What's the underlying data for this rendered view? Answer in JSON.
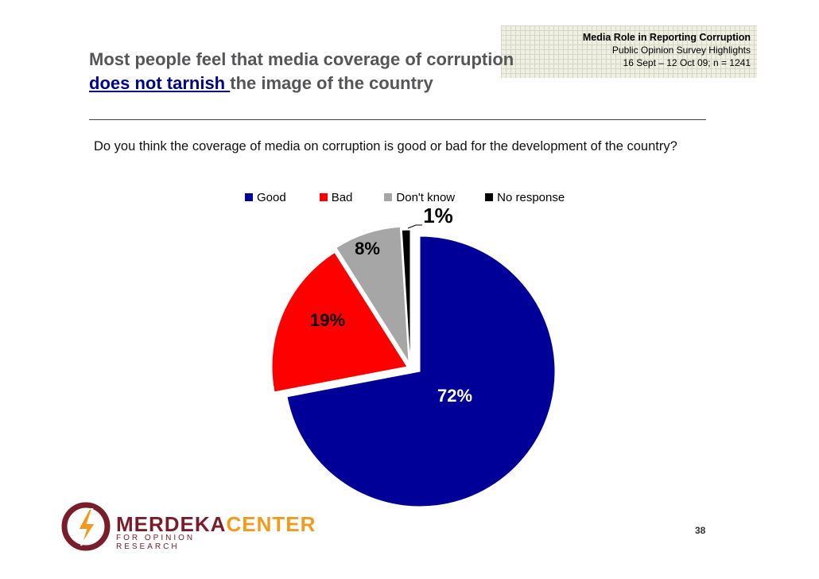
{
  "header": {
    "line1": "Media Role in Reporting Corruption",
    "line2": "Public Opinion Survey Highlights",
    "line3": "16 Sept – 12 Oct 09; n = 1241"
  },
  "title": {
    "part1": "Most people feel that media coverage of corruption ",
    "highlight": "does not tarnish ",
    "part2": "the image of the country"
  },
  "question": "Do you think the coverage of media on corruption is good or bad for the development of the country?",
  "logo": {
    "main_a": "MERDEKA",
    "main_b": "CENTER",
    "sub": "FOR OPINION RESEARCH"
  },
  "page_number": "38",
  "chart_data": {
    "type": "pie",
    "categories": [
      "Good",
      "Bad",
      "Don't know",
      "No response"
    ],
    "values": [
      72,
      19,
      8,
      1
    ],
    "labels": [
      "72%",
      "19%",
      "8%",
      "1%"
    ],
    "colors": [
      "#000099",
      "#ff0000",
      "#a6a6a6",
      "#000000"
    ],
    "legend_position": "top",
    "exploded": true
  }
}
